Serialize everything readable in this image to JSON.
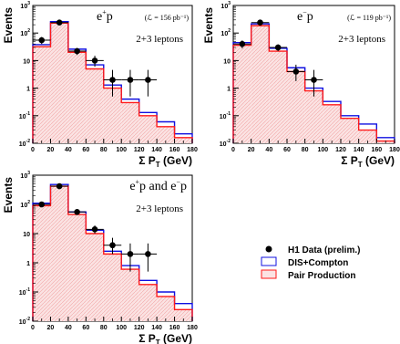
{
  "colors": {
    "dis_compton": "#1010e0",
    "pair_production": "#ff1a1a",
    "pair_fill": "#f7c7c7",
    "data": "#000000",
    "axes": "#000000"
  },
  "legend": {
    "items": [
      {
        "label": "H1 Data (prelim.)",
        "marker": "filled-circle"
      },
      {
        "label": "DIS+Compton",
        "marker": "blue-box"
      },
      {
        "label": "Pair Production",
        "marker": "red-box"
      }
    ]
  },
  "chart_data": [
    {
      "type": "histogram",
      "sample": "e+p",
      "title_particle": "e",
      "title_charge": "+",
      "title_rest": "p",
      "lumi_text": "(ℒ = 156 pb⁻¹)",
      "subtitle": "2+3 leptons",
      "ylabel": "Events",
      "xlabel_main": "Σ P",
      "xlabel_sub": "T",
      "xlabel_unit": " (GeV)",
      "xlim": [
        0,
        180
      ],
      "ylim": [
        0.01,
        1000
      ],
      "yscale": "log",
      "xticks": [
        0,
        20,
        40,
        60,
        80,
        100,
        120,
        140,
        160,
        180
      ],
      "yticks": [
        "10^-2",
        "10^-1",
        "1",
        "10",
        "10^2",
        "10^3"
      ],
      "bin_edges": [
        0,
        20,
        40,
        60,
        80,
        100,
        120,
        140,
        160,
        180
      ],
      "series": [
        {
          "name": "DIS+Compton",
          "values": [
            38,
            260,
            26,
            7,
            1.3,
            0.4,
            0.13,
            0.06,
            0.022
          ]
        },
        {
          "name": "Pair Production",
          "values": [
            32,
            230,
            20,
            5,
            1.0,
            0.3,
            0.1,
            0.04,
            0.016
          ]
        }
      ],
      "data_points": {
        "name": "H1 Data (prelim.)",
        "x": [
          10,
          30,
          50,
          70,
          90,
          110,
          130
        ],
        "y": [
          55,
          240,
          22,
          10,
          2,
          2,
          2
        ],
        "yerr_low": [
          15,
          25,
          6,
          4,
          1.5,
          1.5,
          1.5
        ],
        "yerr_high": [
          17,
          26,
          7,
          5,
          2.6,
          2.6,
          2.6
        ]
      }
    },
    {
      "type": "histogram",
      "sample": "e-p",
      "title_particle": "e",
      "title_charge": "−",
      "title_rest": "p",
      "lumi_text": "(ℒ = 119 pb⁻¹)",
      "subtitle": "2+3 leptons",
      "ylabel": "Events",
      "xlabel_main": "Σ P",
      "xlabel_sub": "T",
      "xlabel_unit": " (GeV)",
      "xlim": [
        0,
        180
      ],
      "ylim": [
        0.01,
        1000
      ],
      "yscale": "log",
      "xticks": [
        0,
        20,
        40,
        60,
        80,
        100,
        120,
        140,
        160,
        180
      ],
      "yticks": [
        "10^-2",
        "10^-1",
        "1",
        "10",
        "10^2",
        "10^3"
      ],
      "bin_edges": [
        0,
        20,
        40,
        60,
        80,
        100,
        120,
        140,
        160,
        180
      ],
      "series": [
        {
          "name": "DIS+Compton",
          "values": [
            45,
            215,
            28,
            5.5,
            1.0,
            0.33,
            0.1,
            0.05,
            0.016
          ]
        },
        {
          "name": "Pair Production",
          "values": [
            36,
            185,
            22,
            4,
            0.8,
            0.25,
            0.08,
            0.03,
            0.012
          ]
        }
      ],
      "data_points": {
        "name": "H1 Data (prelim.)",
        "x": [
          10,
          30,
          50,
          70,
          90
        ],
        "y": [
          40,
          240,
          30,
          4,
          2
        ],
        "yerr_low": [
          12,
          25,
          8,
          2.2,
          1.5
        ],
        "yerr_high": [
          14,
          26,
          9,
          3.1,
          2.6
        ]
      }
    },
    {
      "type": "histogram",
      "sample": "e+p and e-p",
      "title_particle": "e",
      "title_charge": "+",
      "title_rest": "p and e",
      "title_charge2": "−",
      "title_rest2": "p",
      "lumi_text": "",
      "subtitle": "2+3 leptons",
      "ylabel": "Events",
      "xlabel_main": "Σ P",
      "xlabel_sub": "T",
      "xlabel_unit": " (GeV)",
      "xlim": [
        0,
        180
      ],
      "ylim": [
        0.01,
        1000
      ],
      "yscale": "log",
      "xticks": [
        0,
        20,
        40,
        60,
        80,
        100,
        120,
        140,
        160,
        180
      ],
      "yticks": [
        "10^-2",
        "10^-1",
        "1",
        "10",
        "10^2",
        "10^3"
      ],
      "bin_edges": [
        0,
        20,
        40,
        60,
        80,
        100,
        120,
        140,
        160,
        180
      ],
      "series": [
        {
          "name": "DIS+Compton",
          "values": [
            110,
            480,
            55,
            13,
            2.5,
            0.8,
            0.25,
            0.1,
            0.04
          ]
        },
        {
          "name": "Pair Production",
          "values": [
            90,
            420,
            45,
            10,
            2.0,
            0.6,
            0.18,
            0.07,
            0.025
          ]
        }
      ],
      "data_points": {
        "name": "H1 Data (prelim.)",
        "x": [
          10,
          30,
          50,
          70,
          90,
          110,
          130
        ],
        "y": [
          100,
          420,
          55,
          14,
          4,
          2,
          2
        ],
        "yerr_low": [
          20,
          30,
          8,
          4,
          2,
          1.5,
          1.5
        ],
        "yerr_high": [
          22,
          31,
          9,
          5,
          3.2,
          2.6,
          2.6
        ]
      }
    }
  ]
}
